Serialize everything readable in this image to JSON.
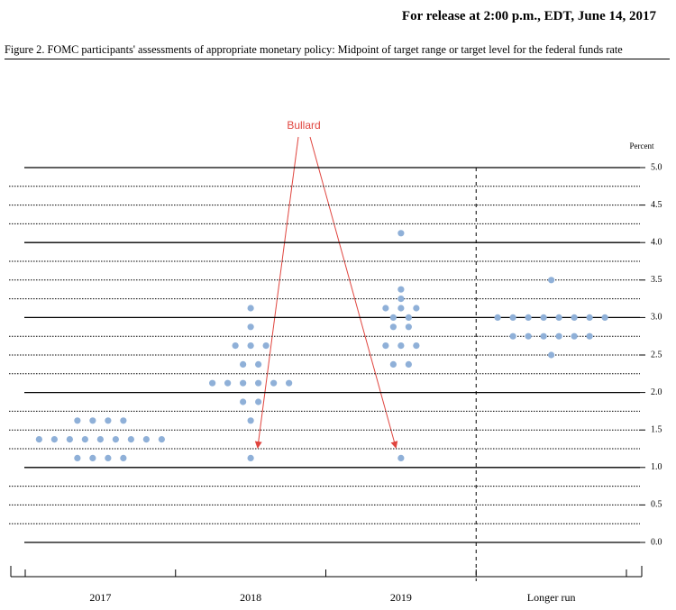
{
  "header": {
    "release": "For release at 2:00 p.m., EDT, June 14, 2017"
  },
  "chart_data": {
    "type": "dotplot",
    "title": "Figure 2. FOMC participants' assessments of appropriate monetary policy: Midpoint of target range or target level for the federal funds rate",
    "y_label": "Percent",
    "annotation": "Bullard",
    "categories": [
      "2017",
      "2018",
      "2019",
      "Longer run"
    ],
    "color": "#8fb0d8",
    "dots": [
      [
        1.125,
        1.125,
        1.125,
        1.125,
        1.375,
        1.375,
        1.375,
        1.375,
        1.375,
        1.375,
        1.375,
        1.375,
        1.375,
        1.625,
        1.625,
        1.625,
        1.625
      ],
      [
        1.125,
        1.625,
        1.875,
        1.875,
        2.125,
        2.125,
        2.125,
        2.125,
        2.125,
        2.125,
        2.375,
        2.375,
        2.625,
        2.625,
        2.625,
        2.875,
        3.125
      ],
      [
        1.125,
        2.375,
        2.375,
        2.625,
        2.625,
        2.625,
        2.875,
        2.875,
        3.0,
        3.0,
        3.125,
        3.125,
        3.125,
        3.25,
        3.375,
        4.125
      ],
      [
        2.5,
        2.75,
        2.75,
        2.75,
        2.75,
        2.75,
        2.75,
        3.0,
        3.0,
        3.0,
        3.0,
        3.0,
        3.0,
        3.0,
        3.0,
        3.5
      ]
    ],
    "ylim": [
      0,
      5
    ],
    "yticks": [
      {
        "value": 0,
        "label": "0.0"
      },
      {
        "value": 0.5,
        "label": "0.5"
      },
      {
        "value": 1,
        "label": "1.0"
      },
      {
        "value": 1.5,
        "label": "1.5"
      },
      {
        "value": 2,
        "label": "2.0"
      },
      {
        "value": 2.5,
        "label": "2.5"
      },
      {
        "value": 3,
        "label": "3.0"
      },
      {
        "value": 3.5,
        "label": "3.5"
      },
      {
        "value": 4,
        "label": "4.0"
      },
      {
        "value": 4.5,
        "label": "4.5"
      },
      {
        "value": 5,
        "label": "5.0"
      }
    ],
    "yticks_minor": [
      0.25,
      0.5,
      0.75,
      1.25,
      1.5,
      1.75,
      2.25,
      2.5,
      2.75,
      3.25,
      3.5,
      3.75,
      4.25,
      4.5,
      4.75
    ],
    "grid": true
  }
}
